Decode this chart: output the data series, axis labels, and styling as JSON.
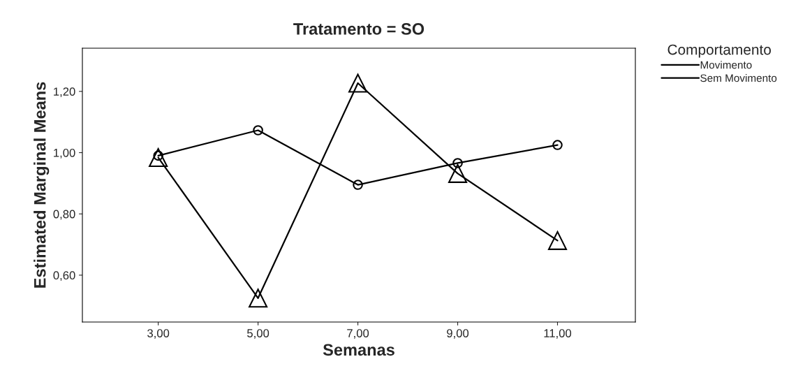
{
  "chart_data": {
    "type": "line",
    "title": "Tratamento = SO",
    "xlabel": "Semanas",
    "ylabel": "Estimated Marginal Means",
    "legend_title": "Comportamento",
    "categories": [
      "3,00",
      "5,00",
      "7,00",
      "9,00",
      "11,00"
    ],
    "series": [
      {
        "name": "Movimento",
        "color": "#000000",
        "marker": "circle",
        "values": [
          0.99,
          1.073,
          0.895,
          0.966,
          1.025
        ]
      },
      {
        "name": "Sem Movimento",
        "color": "#000000",
        "marker": "triangle",
        "values": [
          0.984,
          0.525,
          1.227,
          0.932,
          0.713
        ]
      }
    ],
    "ylim": [
      0.447,
      1.341
    ],
    "yticks": [
      {
        "value": 0.6,
        "label": "0,60"
      },
      {
        "value": 0.8,
        "label": "0,80"
      },
      {
        "value": 1.0,
        "label": "1,00"
      },
      {
        "value": 1.2,
        "label": "1,20"
      }
    ],
    "legend": "top right",
    "grid": false,
    "line_style": "solid"
  }
}
